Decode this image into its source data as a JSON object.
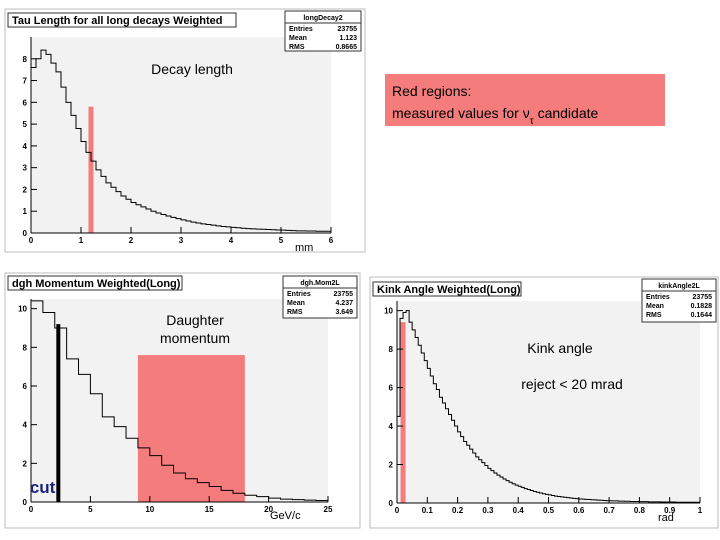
{
  "chart_data": [
    {
      "type": "bar",
      "histogram_name": "longDecay2",
      "title": "Tau Length for all long decays Weighted",
      "xlabel": "mm",
      "ylabel": "",
      "xlim": [
        0,
        6
      ],
      "ylim": [
        0,
        9
      ],
      "xticks": [
        "0",
        "1",
        "2",
        "3",
        "4",
        "5",
        "6"
      ],
      "yticks": [
        "0",
        "1",
        "2",
        "3",
        "4",
        "5",
        "6",
        "7",
        "8"
      ],
      "stats": [
        {
          "key": "Entries",
          "value": "23755"
        },
        {
          "key": "Mean",
          "value": "1.123"
        },
        {
          "key": "RMS",
          "value": "0.8665"
        }
      ],
      "bin_width": 0.1,
      "values": [
        7.6,
        8.0,
        8.4,
        8.2,
        7.8,
        7.4,
        6.7,
        6.0,
        5.4,
        4.8,
        4.2,
        3.7,
        3.3,
        2.9,
        2.6,
        2.3,
        2.1,
        1.9,
        1.7,
        1.55,
        1.4,
        1.3,
        1.2,
        1.1,
        1.0,
        0.92,
        0.85,
        0.78,
        0.72,
        0.66,
        0.6,
        0.55,
        0.5,
        0.46,
        0.42,
        0.39,
        0.36,
        0.33,
        0.3,
        0.28,
        0.26,
        0.24,
        0.22,
        0.2,
        0.19,
        0.18,
        0.17,
        0.16,
        0.15,
        0.14,
        0.13,
        0.12,
        0.11,
        0.1,
        0.1,
        0.09,
        0.09,
        0.08,
        0.08,
        0.08
      ],
      "highlight": {
        "type": "line",
        "x": 1.2
      },
      "annotation": "Decay length"
    },
    {
      "type": "bar",
      "histogram_name": "dgh.Mom2L",
      "title": "dgh Momentum Weighted(Long)",
      "xlabel": "GeV/c",
      "ylabel": "",
      "xlim": [
        0,
        25
      ],
      "ylim": [
        0,
        10.5
      ],
      "xticks": [
        "0",
        "5",
        "10",
        "15",
        "20",
        "25"
      ],
      "yticks": [
        "0",
        "2",
        "4",
        "6",
        "8",
        "10"
      ],
      "stats": [
        {
          "key": "Entries",
          "value": "23755"
        },
        {
          "key": "Mean",
          "value": "4.237"
        },
        {
          "key": "RMS",
          "value": "3.649"
        }
      ],
      "bin_width": 1,
      "values": [
        10.4,
        9.8,
        9.0,
        7.4,
        6.6,
        5.6,
        4.4,
        3.9,
        3.3,
        2.8,
        2.4,
        1.9,
        1.5,
        1.2,
        1.0,
        0.8,
        0.6,
        0.45,
        0.35,
        0.28,
        0.2,
        0.15,
        0.12,
        0.1,
        0.08
      ],
      "highlight": {
        "type": "band",
        "x0": 9,
        "x1": 18
      },
      "cut": {
        "x": 2.3,
        "label": "cut"
      },
      "annotation": [
        "Daughter",
        "momentum"
      ]
    },
    {
      "type": "bar",
      "histogram_name": "kinkAngle2L",
      "title": "Kink Angle Weighted(Long)",
      "xlabel": "rad",
      "ylabel": "",
      "xlim": [
        0,
        1
      ],
      "ylim": [
        0,
        10.5
      ],
      "xticks": [
        "0",
        "0.1",
        "0.2",
        "0.3",
        "0.4",
        "0.5",
        "0.6",
        "0.7",
        "0.8",
        "0.9",
        "1"
      ],
      "yticks": [
        "0",
        "2",
        "4",
        "6",
        "8",
        "10"
      ],
      "stats": [
        {
          "key": "Entries",
          "value": "23755"
        },
        {
          "key": "Mean",
          "value": "0.1828"
        },
        {
          "key": "RMS",
          "value": "0.1644"
        }
      ],
      "bin_width": 0.01,
      "values": [
        4.5,
        9.6,
        9.9,
        10.0,
        9.4,
        9.0,
        8.6,
        8.2,
        7.8,
        7.4,
        7.0,
        6.6,
        6.2,
        5.9,
        5.5,
        5.2,
        4.9,
        4.6,
        4.3,
        4.0,
        3.7,
        3.45,
        3.2,
        3.0,
        2.8,
        2.6,
        2.4,
        2.25,
        2.1,
        1.95,
        1.8,
        1.68,
        1.56,
        1.45,
        1.35,
        1.25,
        1.16,
        1.08,
        1.0,
        0.93,
        0.87,
        0.81,
        0.75,
        0.7,
        0.65,
        0.6,
        0.56,
        0.52,
        0.48,
        0.45,
        0.42,
        0.39,
        0.36,
        0.34,
        0.32,
        0.3,
        0.28,
        0.26,
        0.24,
        0.23,
        0.21,
        0.2,
        0.19,
        0.18,
        0.17,
        0.16,
        0.15,
        0.14,
        0.13,
        0.12,
        0.12,
        0.11,
        0.11,
        0.1,
        0.1,
        0.09,
        0.09,
        0.08,
        0.08,
        0.08,
        0.07,
        0.07,
        0.07,
        0.06,
        0.06,
        0.06,
        0.06,
        0.05,
        0.05,
        0.05,
        0.05,
        0.05,
        0.04,
        0.04,
        0.04,
        0.04,
        0.04,
        0.04,
        0.04,
        0.04
      ],
      "highlight": {
        "type": "line",
        "x": 0.02
      },
      "annotation": [
        "Kink angle",
        "reject < 20 mrad"
      ]
    }
  ],
  "legend_note": {
    "line1": "Red regions:",
    "line2_prefix": "measured values for ν",
    "line2_sub": "τ",
    "line2_suffix": " candidate"
  }
}
